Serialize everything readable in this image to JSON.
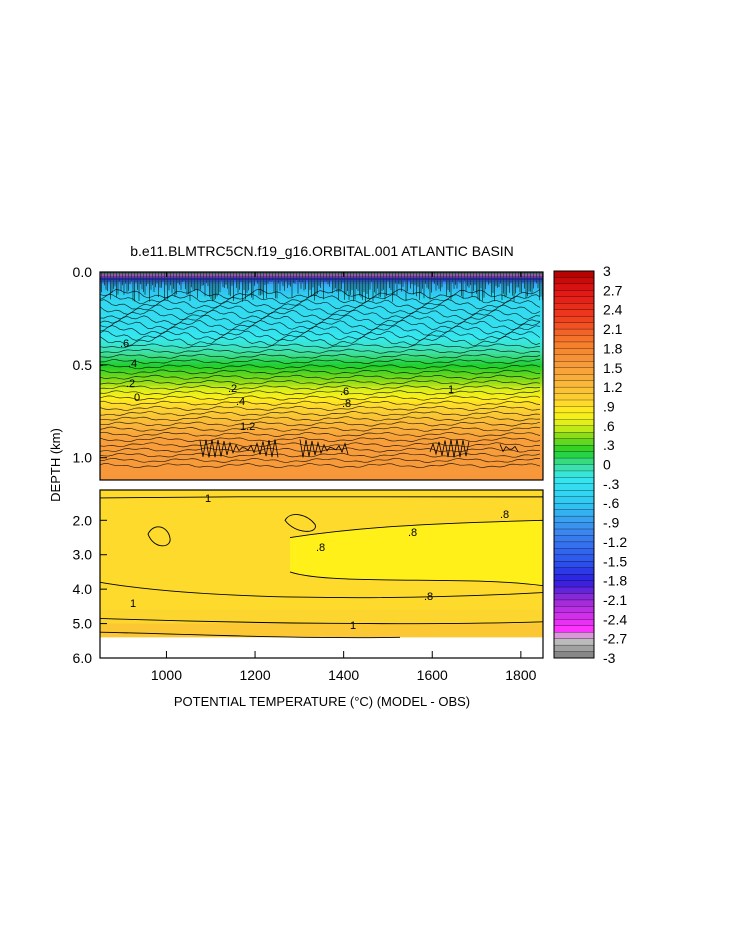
{
  "chart_data": {
    "type": "heatmap",
    "title": "b.e11.BLMTRC5CN.f19_g16.ORBITAL.001 ATLANTIC BASIN",
    "xlabel": "POTENTIAL TEMPERATURE (°C) (MODEL - OBS)",
    "ylabel": "DEPTH (km)",
    "xlim": [
      850,
      1850
    ],
    "x_ticks": [
      "1000",
      "1200",
      "1400",
      "1600",
      "1800"
    ],
    "x_tick_values": [
      1000,
      1200,
      1400,
      1600,
      1800
    ],
    "upper_panel": {
      "ylim": [
        0.0,
        1.12
      ],
      "y_ticks": [
        "0.0",
        "0.5",
        "1.0"
      ],
      "y_tick_values": [
        0.0,
        0.5,
        1.0
      ]
    },
    "lower_panel": {
      "ylim": [
        1.12,
        6.0
      ],
      "y_ticks": [
        "2.0",
        "3.0",
        "4.0",
        "5.0",
        "6.0"
      ],
      "y_tick_values": [
        2.0,
        3.0,
        4.0,
        5.0,
        6.0
      ]
    },
    "colorbar": {
      "labels": [
        "3",
        "2.7",
        "2.4",
        "2.1",
        "1.8",
        "1.5",
        "1.2",
        ".9",
        ".6",
        ".3",
        "0",
        "-.3",
        "-.6",
        "-.9",
        "-1.2",
        "-1.5",
        "-1.8",
        "-2.1",
        "-2.4",
        "-2.7",
        "-3"
      ],
      "values": [
        3,
        2.7,
        2.4,
        2.1,
        1.8,
        1.5,
        1.2,
        0.9,
        0.6,
        0.3,
        0,
        -0.3,
        -0.6,
        -0.9,
        -1.2,
        -1.5,
        -1.8,
        -2.1,
        -2.4,
        -2.7,
        -3
      ],
      "color_stops": [
        {
          "v": -3.0,
          "c": "#7a7a7a"
        },
        {
          "v": -2.7,
          "c": "#c8c8c8"
        },
        {
          "v": -2.55,
          "c": "#ff33ff"
        },
        {
          "v": -2.1,
          "c": "#9a2bd6"
        },
        {
          "v": -1.8,
          "c": "#2a1ee0"
        },
        {
          "v": -1.5,
          "c": "#2e55ee"
        },
        {
          "v": -1.0,
          "c": "#3d8cf0"
        },
        {
          "v": -0.6,
          "c": "#2fc8f2"
        },
        {
          "v": -0.2,
          "c": "#35e8ee"
        },
        {
          "v": 0.0,
          "c": "#3fdf9a"
        },
        {
          "v": 0.2,
          "c": "#1fcf2a"
        },
        {
          "v": 0.45,
          "c": "#8ddc18"
        },
        {
          "v": 0.6,
          "c": "#d8ef1a"
        },
        {
          "v": 0.8,
          "c": "#fff01a"
        },
        {
          "v": 1.0,
          "c": "#fcd232"
        },
        {
          "v": 1.3,
          "c": "#f9b13a"
        },
        {
          "v": 1.6,
          "c": "#f7963a"
        },
        {
          "v": 1.9,
          "c": "#f47a2a"
        },
        {
          "v": 2.3,
          "c": "#f03a1e"
        },
        {
          "v": 2.7,
          "c": "#e01414"
        },
        {
          "v": 3.0,
          "c": "#b00000"
        }
      ]
    },
    "upper_profile": [
      {
        "depth": 0.0,
        "value": -3.0
      },
      {
        "depth": 0.06,
        "value": -0.8
      },
      {
        "depth": 0.15,
        "value": -0.4
      },
      {
        "depth": 0.3,
        "value": -0.3
      },
      {
        "depth": 0.4,
        "value": -0.1
      },
      {
        "depth": 0.5,
        "value": 0.2
      },
      {
        "depth": 0.6,
        "value": 0.5
      },
      {
        "depth": 0.7,
        "value": 0.9
      },
      {
        "depth": 0.8,
        "value": 1.2
      },
      {
        "depth": 0.9,
        "value": 1.5
      },
      {
        "depth": 1.12,
        "value": 1.6
      }
    ],
    "lower_field": {
      "background_value": 0.95,
      "deep_values": [
        {
          "depth": 4.6,
          "value": 1.0
        },
        {
          "depth": 5.0,
          "value": 1.2
        },
        {
          "depth": 5.4,
          "value": 1.4
        }
      ],
      "warm_region_value": 0.8
    },
    "contour_labels_upper": [
      ".6",
      ".4",
      ".2",
      "0",
      ".2",
      ".4",
      ".6",
      ".8",
      "1",
      "1.2"
    ],
    "contour_labels_lower": [
      "1",
      ".8",
      ".8",
      ".8",
      "1",
      "1",
      ".8"
    ]
  }
}
